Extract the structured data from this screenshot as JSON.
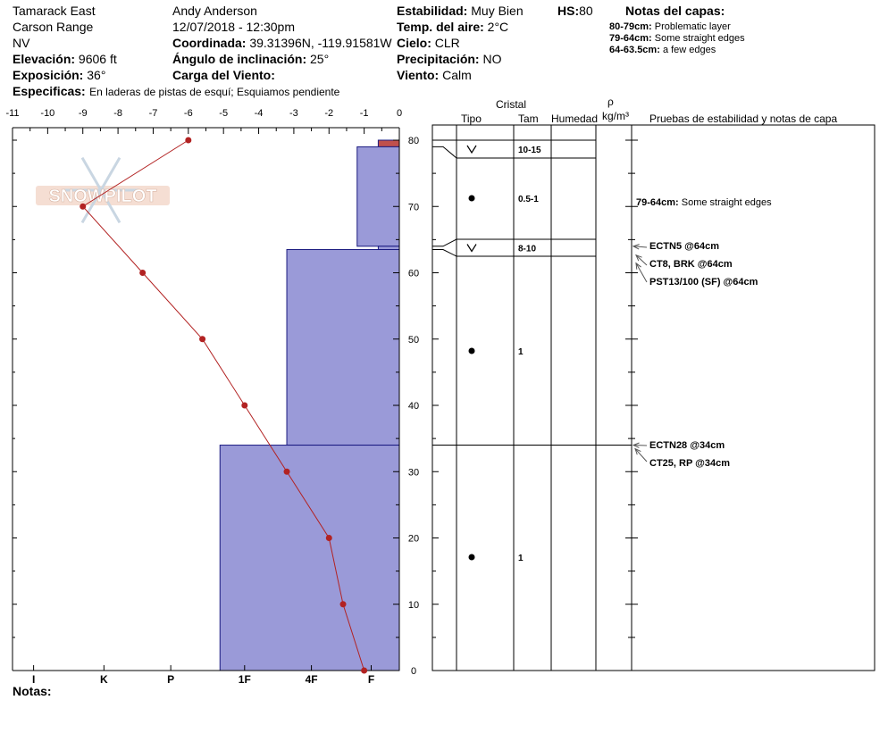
{
  "header": {
    "location": "Tamarack East",
    "range": "Carson Range",
    "state": "NV",
    "elevation_label": "Elevación:",
    "elevation_value": "9606 ft",
    "aspect_label": "Exposición:",
    "aspect_value": "36°",
    "specifics_label": "Especificas:",
    "specifics_value": "En laderas de pistas de esquí; Esquiamos pendiente",
    "observer": "Andy Anderson",
    "datetime": "12/07/2018 - 12:30pm",
    "coord_label": "Coordinada:",
    "coord_value": "39.31396N, -119.91581W",
    "incline_label": "Ángulo de inclinación:",
    "incline_value": "25°",
    "wind_load_label": "Carga del Viento:",
    "stability_label": "Estabilidad:",
    "stability_value": "Muy Bien",
    "hs_label": "HS:",
    "hs_value": "80",
    "air_temp_label": "Temp. del aire:",
    "air_temp_value": "2°C",
    "sky_label": "Cielo:",
    "sky_value": "CLR",
    "precip_label": "Precipitación:",
    "precip_value": "NO",
    "wind_label": "Viento:",
    "wind_value": "Calm",
    "layer_notes_title": "Notas del capas:",
    "layer_notes": [
      {
        "range": "80-79cm:",
        "text": "Problematic layer"
      },
      {
        "range": "79-64cm:",
        "text": "Some straight edges"
      },
      {
        "range": "64-63.5cm:",
        "text": "a few edges"
      }
    ]
  },
  "watermark": "SNOWPILOT",
  "notes_label": "Notas:",
  "columns": {
    "crystal": "Cristal",
    "type": "Tipo",
    "size": "Tam",
    "moisture": "Humedad",
    "rho": "ρ",
    "density_unit": "kg/m³",
    "tests": "Pruebas de estabilidad y notas de capa"
  },
  "temp_ticks": [
    "-11",
    "-10",
    "-9",
    "-8",
    "-7",
    "-6",
    "-5",
    "-4",
    "-3",
    "-2",
    "-1",
    "0"
  ],
  "height_ticks": [
    "80",
    "70",
    "60",
    "50",
    "40",
    "30",
    "20",
    "10",
    "0"
  ],
  "hardness_ticks": [
    "I",
    "K",
    "P",
    "1F",
    "4F",
    "F"
  ],
  "layers": [
    {
      "top": 80,
      "bottom": 79,
      "size": "",
      "symbol": "",
      "hardness_temp": -0.6,
      "color": "#c0504d"
    },
    {
      "top": 79,
      "bottom": 64,
      "size": "0.5-1",
      "symbol": "dot",
      "hardness_temp": -1.2,
      "color": "#9a9ad8"
    },
    {
      "top": 64,
      "bottom": 63.5,
      "size": "",
      "symbol": "",
      "hardness_temp": -0.6,
      "color": "#9a9ad8"
    },
    {
      "top": 63.5,
      "bottom": 34,
      "size": "1",
      "symbol": "dot",
      "hardness_temp": -3.2,
      "color": "#9a9ad8"
    },
    {
      "top": 34,
      "bottom": 0,
      "size": "1",
      "symbol": "dot",
      "hardness_temp": -5.1,
      "color": "#9a9ad8"
    }
  ],
  "surface_hoar_layers": [
    {
      "top": 80,
      "bottom": 77.5,
      "size": "10-15",
      "symbol": "V"
    },
    {
      "top": 65,
      "bottom": 62.5,
      "size": "8-10",
      "symbol": "V"
    }
  ],
  "layer_note_in_col": {
    "text_bold": "79-64cm:",
    "text": "Some straight edges"
  },
  "tests": [
    {
      "label": "ECTN5 @64cm",
      "height": 64
    },
    {
      "label": "CT8, BRK @64cm",
      "height": 64
    },
    {
      "label": "PST13/100 (SF) @64cm",
      "height": 64
    },
    {
      "label": "ECTN28 @34cm",
      "height": 34
    },
    {
      "label": "CT25, RP @34cm",
      "height": 34
    }
  ],
  "chart_data": {
    "type": "line",
    "title": "",
    "xlabel": "",
    "ylabel": "",
    "xlim": [
      -11,
      0
    ],
    "ylim": [
      0,
      80
    ],
    "series": [
      {
        "x": [
          -6.0,
          -9.0,
          -7.3,
          -5.6,
          -4.4,
          -3.2,
          -2.0,
          -1.6,
          -1.0
        ],
        "y": [
          80,
          70,
          60,
          50,
          40,
          30,
          20,
          10,
          0
        ]
      }
    ]
  }
}
